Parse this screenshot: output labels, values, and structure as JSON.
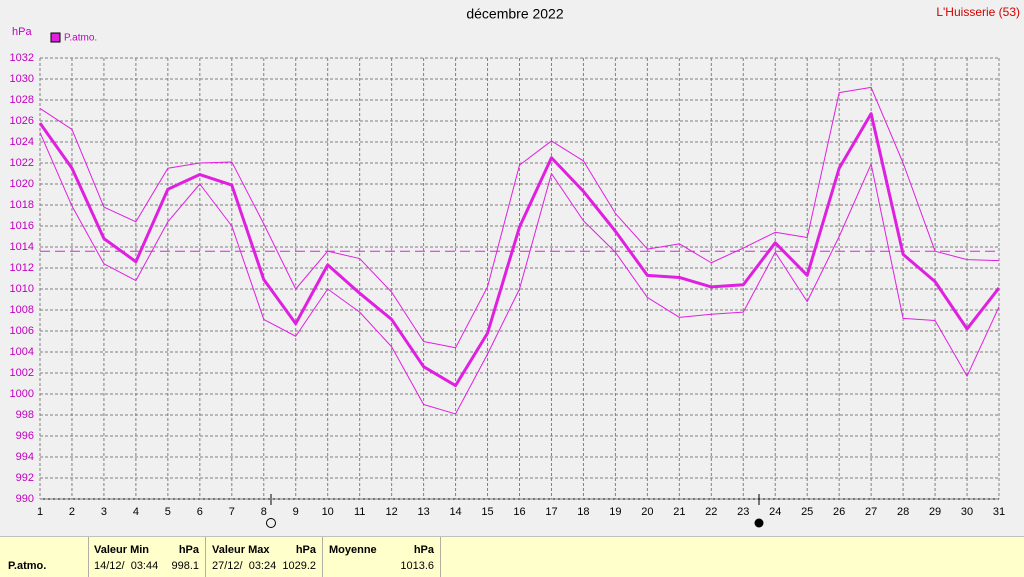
{
  "chart_data": {
    "type": "line",
    "title": "décembre 2022",
    "location": "L'Huisserie (53)",
    "y_label": "hPa",
    "x": [
      1,
      2,
      3,
      4,
      5,
      6,
      7,
      8,
      9,
      10,
      11,
      12,
      13,
      14,
      15,
      16,
      17,
      18,
      19,
      20,
      21,
      22,
      23,
      24,
      25,
      26,
      27,
      28,
      29,
      30,
      31
    ],
    "xlim": [
      1,
      31
    ],
    "ylim": [
      990,
      1032
    ],
    "yticks": [
      990,
      992,
      994,
      996,
      998,
      1000,
      1002,
      1004,
      1006,
      1008,
      1010,
      1012,
      1014,
      1016,
      1018,
      1020,
      1022,
      1024,
      1026,
      1028,
      1030,
      1032
    ],
    "grid": true,
    "series": [
      {
        "name": "P.atmo.",
        "color": "#e020e0",
        "values": [
          1025.8,
          1021.5,
          1014.8,
          1012.6,
          1019.5,
          1020.9,
          1019.9,
          1010.9,
          1006.7,
          1012.3,
          1009.6,
          1007.1,
          1002.6,
          1000.8,
          1005.8,
          1015.9,
          1022.5,
          1019.3,
          1015.5,
          1011.3,
          1011.1,
          1010.2,
          1010.4,
          1014.4,
          1011.3,
          1021.5,
          1026.7,
          1013.3,
          1010.7,
          1006.2,
          1010.1
        ]
      },
      {
        "color": "#e020e0",
        "values": [
          1027.2,
          1025.2,
          1017.8,
          1016.4,
          1021.5,
          1022.0,
          1022.1,
          1016.2,
          1010.0,
          1013.6,
          1012.9,
          1009.7,
          1005.0,
          1004.4,
          1010.2,
          1021.8,
          1024.1,
          1022.2,
          1017.2,
          1013.8,
          1014.3,
          1012.5,
          1013.9,
          1015.4,
          1014.9,
          1028.7,
          1029.2,
          1022.0,
          1013.6,
          1012.8,
          1012.7
        ]
      },
      {
        "color": "#e020e0",
        "values": [
          1024.9,
          1017.9,
          1012.4,
          1010.8,
          1016.4,
          1020.0,
          1016.0,
          1007.1,
          1005.5,
          1010.0,
          1007.8,
          1004.5,
          999.0,
          998.1,
          1003.8,
          1010.0,
          1021.0,
          1016.5,
          1013.5,
          1009.2,
          1007.3,
          1007.6,
          1007.8,
          1013.5,
          1008.8,
          1015.0,
          1021.9,
          1007.2,
          1007.0,
          1001.7,
          1008.3
        ]
      }
    ]
  },
  "stats": {
    "row_label": "P.atmo.",
    "min": {
      "header": "Valeur Min",
      "unit": "hPa",
      "date": "14/12/  03:44",
      "value": 998.1
    },
    "max": {
      "header": "Valeur Max",
      "unit": "hPa",
      "date": "27/12/  03:24",
      "value": 1029.2
    },
    "mean": {
      "header": "Moyenne",
      "unit": "hPa",
      "value": 1013.6
    }
  }
}
